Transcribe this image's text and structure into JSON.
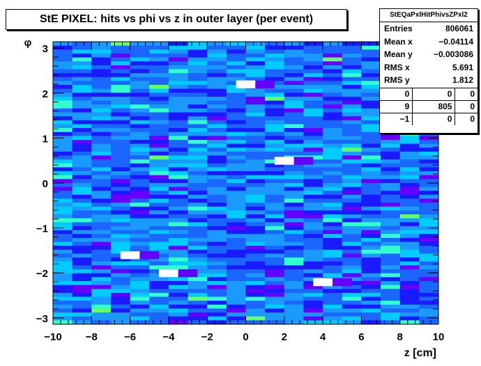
{
  "chart_data": {
    "type": "heatmap",
    "title": "StE PIXEL: hits vs phi vs z in outer layer (per event)",
    "xlabel": "z [cm]",
    "ylabel": "φ",
    "xlim": [
      -10,
      10
    ],
    "ylim": [
      -3.14159,
      3.14159
    ],
    "x_bins": 20,
    "y_bins": 72,
    "x_ticks": [
      "−10",
      "−8",
      "−6",
      "−4",
      "−2",
      "0",
      "2",
      "4",
      "6",
      "8",
      "10"
    ],
    "y_ticks": [
      "−3",
      "−2",
      "−1",
      "0",
      "1",
      "2",
      "3"
    ],
    "palette": [
      "#6600ff",
      "#1a1aff",
      "#1a66ff",
      "#1a99ff",
      "#00ccff",
      "#33ffcc",
      "#66ff66"
    ],
    "hot_cells": [
      {
        "z": 0.5,
        "phi": 2.15,
        "color": "#ffffff"
      },
      {
        "z": 1.5,
        "phi": 2.15,
        "color": "#6600ff"
      },
      {
        "z": 2.5,
        "phi": 0.45,
        "color": "#ffffff"
      },
      {
        "z": 3.5,
        "phi": 0.45,
        "color": "#6600ff"
      },
      {
        "z": -5.5,
        "phi": -1.65,
        "color": "#ffffff"
      },
      {
        "z": -4.5,
        "phi": -1.65,
        "color": "#6600ff"
      },
      {
        "z": -3.5,
        "phi": -2.05,
        "color": "#ffffff"
      },
      {
        "z": -2.5,
        "phi": -2.05,
        "color": "#6600ff"
      },
      {
        "z": 4.5,
        "phi": -2.25,
        "color": "#ffffff"
      },
      {
        "z": 5.5,
        "phi": -2.25,
        "color": "#6600ff"
      }
    ],
    "legend": "top-right"
  },
  "stats": {
    "name": "StEQaPxlHitPhivsZPxl2",
    "rows": [
      {
        "label": "Entries",
        "value": "806061"
      },
      {
        "label": "Mean x",
        "value": "−0.04114"
      },
      {
        "label": "Mean y",
        "value": "−0.003086"
      },
      {
        "label": "RMS x",
        "value": "5.691"
      },
      {
        "label": "RMS y",
        "value": "1.812"
      }
    ],
    "grid": [
      [
        "0",
        "0",
        "0"
      ],
      [
        "9",
        "805",
        "0"
      ],
      [
        "−1",
        "0",
        "0"
      ]
    ]
  }
}
